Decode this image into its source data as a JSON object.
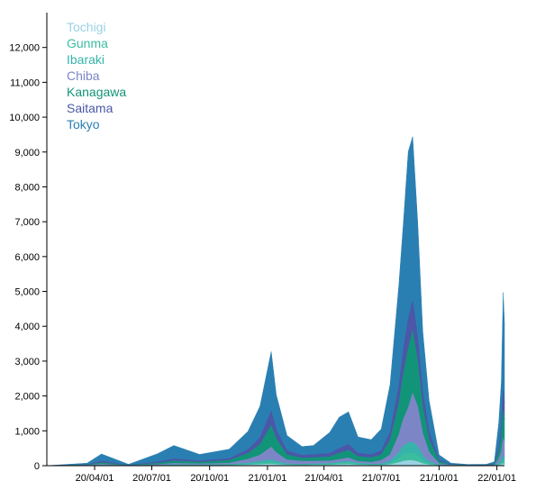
{
  "chart_data": {
    "type": "area",
    "stacked": true,
    "title": "",
    "xlabel": "",
    "ylabel": "",
    "x_range": [
      "2020-01-16",
      "2022-01-13"
    ],
    "ylim": [
      0,
      13000
    ],
    "y_ticks": [
      0,
      1000,
      2000,
      3000,
      4000,
      5000,
      6000,
      7000,
      8000,
      9000,
      10000,
      11000,
      12000
    ],
    "y_tick_labels": [
      "0",
      "1,000",
      "2,000",
      "3,000",
      "4,000",
      "5,000",
      "6,000",
      "7,000",
      "8,000",
      "9,000",
      "10,000",
      "11,000",
      "12,000"
    ],
    "x_ticks": [
      "2020-04-01",
      "2020-07-01",
      "2020-10-01",
      "2021-01-01",
      "2021-04-01",
      "2021-07-01",
      "2021-10-01",
      "2022-01-01"
    ],
    "x_tick_labels": [
      "20/04/01",
      "20/07/01",
      "20/10/01",
      "21/01/01",
      "21/04/01",
      "21/07/01",
      "21/10/01",
      "22/01/01"
    ],
    "grid": false,
    "legend_position": "top-left",
    "legend": [
      "Tochigi",
      "Gunma",
      "Ibaraki",
      "Chiba",
      "Kanagawa",
      "Saitama",
      "Tokyo"
    ],
    "x": [
      "2020-01-16",
      "2020-03-20",
      "2020-04-12",
      "2020-05-25",
      "2020-07-10",
      "2020-08-05",
      "2020-09-15",
      "2020-11-01",
      "2020-12-01",
      "2020-12-20",
      "2021-01-07",
      "2021-01-15",
      "2021-02-01",
      "2021-02-25",
      "2021-03-15",
      "2021-04-10",
      "2021-04-25",
      "2021-05-10",
      "2021-05-25",
      "2021-06-15",
      "2021-07-01",
      "2021-07-15",
      "2021-07-29",
      "2021-08-05",
      "2021-08-13",
      "2021-08-20",
      "2021-08-28",
      "2021-09-05",
      "2021-09-15",
      "2021-10-01",
      "2021-10-20",
      "2021-11-15",
      "2021-12-15",
      "2021-12-28",
      "2022-01-04",
      "2022-01-08",
      "2022-01-11",
      "2022-01-13"
    ],
    "series": [
      {
        "name": "Tokyo",
        "color": "#2a7fb2",
        "values": [
          0,
          40,
          200,
          25,
          230,
          380,
          180,
          270,
          520,
          900,
          1700,
          1000,
          430,
          250,
          260,
          600,
          890,
          930,
          460,
          430,
          620,
          1350,
          2900,
          3600,
          4800,
          4700,
          3300,
          1750,
          900,
          150,
          35,
          18,
          20,
          60,
          700,
          1300,
          2800,
          2300
        ]
      },
      {
        "name": "Saitama",
        "color": "#4b57a8",
        "values": [
          0,
          10,
          50,
          5,
          40,
          60,
          40,
          50,
          110,
          200,
          420,
          260,
          120,
          80,
          90,
          100,
          140,
          170,
          100,
          90,
          120,
          240,
          500,
          700,
          850,
          860,
          690,
          440,
          230,
          40,
          10,
          5,
          5,
          15,
          150,
          300,
          580,
          480
        ]
      },
      {
        "name": "Kanagawa",
        "color": "#119478",
        "values": [
          0,
          10,
          40,
          4,
          40,
          70,
          50,
          80,
          170,
          300,
          620,
          400,
          150,
          90,
          100,
          120,
          180,
          220,
          140,
          130,
          160,
          420,
          900,
          1300,
          1700,
          1800,
          1300,
          740,
          360,
          60,
          12,
          5,
          5,
          20,
          200,
          400,
          800,
          650
        ]
      },
      {
        "name": "Chiba",
        "color": "#7c86c7",
        "values": [
          0,
          8,
          30,
          3,
          20,
          40,
          30,
          40,
          110,
          180,
          360,
          250,
          110,
          90,
          80,
          70,
          80,
          100,
          50,
          50,
          100,
          180,
          500,
          750,
          1000,
          1400,
          1150,
          640,
          270,
          40,
          10,
          5,
          5,
          10,
          120,
          250,
          500,
          420
        ]
      },
      {
        "name": "Ibaraki",
        "color": "#36b3aa",
        "values": [
          0,
          2,
          8,
          1,
          5,
          15,
          12,
          15,
          30,
          50,
          70,
          50,
          25,
          18,
          20,
          20,
          30,
          35,
          25,
          20,
          25,
          60,
          180,
          260,
          300,
          310,
          250,
          140,
          60,
          10,
          3,
          2,
          2,
          3,
          30,
          60,
          130,
          110
        ]
      },
      {
        "name": "Gunma",
        "color": "#3cbda0",
        "values": [
          0,
          1,
          4,
          1,
          3,
          8,
          5,
          10,
          25,
          40,
          55,
          40,
          15,
          10,
          15,
          25,
          40,
          50,
          30,
          15,
          15,
          40,
          120,
          190,
          210,
          220,
          180,
          90,
          35,
          5,
          1,
          1,
          1,
          2,
          25,
          50,
          100,
          85
        ]
      },
      {
        "name": "Tochigi",
        "color": "#9ad2e3",
        "values": [
          0,
          1,
          3,
          1,
          2,
          5,
          5,
          8,
          20,
          35,
          50,
          35,
          15,
          10,
          15,
          20,
          30,
          40,
          20,
          12,
          12,
          30,
          90,
          130,
          150,
          150,
          120,
          60,
          25,
          5,
          1,
          1,
          1,
          2,
          15,
          30,
          60,
          50
        ]
      }
    ]
  }
}
